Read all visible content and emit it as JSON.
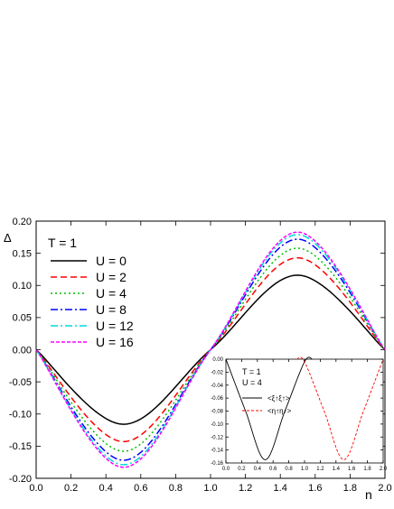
{
  "chart_data": [
    {
      "type": "line",
      "title": "",
      "xlabel": "n",
      "ylabel": "Δ",
      "xlim": [
        0.0,
        2.0
      ],
      "ylim": [
        -0.2,
        0.2
      ],
      "x_ticks": [
        "0.0",
        "0.2",
        "0.4",
        "0.6",
        "0.8",
        "1.0",
        "1.2",
        "1.4",
        "1.6",
        "1.8",
        "2.0"
      ],
      "y_ticks": [
        "-0.20",
        "-0.15",
        "-0.10",
        "-0.05",
        "0.00",
        "0.05",
        "0.10",
        "0.15",
        "0.20"
      ],
      "grid": false,
      "legend_position": "top-left",
      "legend_title": "T = 1",
      "series": [
        {
          "name": "U = 0",
          "color": "#000000",
          "dash": "solid",
          "x": [
            0.0,
            0.5,
            1.0,
            1.5,
            2.0
          ],
          "y": [
            0.0,
            -0.116,
            0.0,
            0.116,
            0.0
          ]
        },
        {
          "name": "U = 2",
          "color": "#ff0000",
          "dash": "dashed",
          "x": [
            0.0,
            0.5,
            1.0,
            1.5,
            2.0
          ],
          "y": [
            0.0,
            -0.143,
            0.0,
            0.143,
            0.0
          ]
        },
        {
          "name": "U = 4",
          "color": "#00c000",
          "dash": "dotted",
          "x": [
            0.0,
            0.5,
            1.0,
            1.5,
            2.0
          ],
          "y": [
            0.0,
            -0.158,
            0.0,
            0.158,
            0.0
          ]
        },
        {
          "name": "U = 8",
          "color": "#0000ff",
          "dash": "dash-dot",
          "x": [
            0.0,
            0.5,
            1.0,
            1.5,
            2.0
          ],
          "y": [
            0.0,
            -0.172,
            0.0,
            0.172,
            0.0
          ]
        },
        {
          "name": "U = 12",
          "color": "#00d8d8",
          "dash": "dash-dot",
          "x": [
            0.0,
            0.5,
            1.0,
            1.5,
            2.0
          ],
          "y": [
            0.0,
            -0.179,
            0.0,
            0.179,
            0.0
          ]
        },
        {
          "name": "U = 16",
          "color": "#ff00ff",
          "dash": "short-dash",
          "x": [
            0.0,
            0.5,
            1.0,
            1.5,
            2.0
          ],
          "y": [
            0.0,
            -0.183,
            0.0,
            0.183,
            0.0
          ]
        }
      ]
    },
    {
      "type": "line",
      "title": "",
      "xlabel": "",
      "ylabel": "",
      "xlim": [
        0.0,
        2.0
      ],
      "ylim": [
        -0.16,
        0.0
      ],
      "x_ticks": [
        "0.0",
        "0.2",
        "0.4",
        "0.6",
        "0.8",
        "1.0",
        "1.2",
        "1.4",
        "1.6",
        "1.8",
        "2.0"
      ],
      "y_ticks": [
        "0.00",
        "-0.02",
        "-0.04",
        "-0.06",
        "-0.08",
        "-0.10",
        "-0.12",
        "-0.14",
        "-0.16"
      ],
      "grid": false,
      "legend_position": "top-left",
      "legend_title_lines": [
        "T = 1",
        "U = 4"
      ],
      "series": [
        {
          "name": "<ξ↑ξ↑>",
          "color": "#000000",
          "dash": "solid",
          "x": [
            0.0,
            0.25,
            0.5,
            0.75,
            1.0,
            1.1
          ],
          "y": [
            0.0,
            -0.08,
            -0.155,
            -0.08,
            -0.004,
            0.0
          ]
        },
        {
          "name": "<η↑η↑>",
          "color": "#ff0000",
          "dash": "dashed",
          "x": [
            0.9,
            1.0,
            1.25,
            1.5,
            1.75,
            2.0
          ],
          "y": [
            0.0,
            -0.004,
            -0.08,
            -0.155,
            -0.08,
            0.0
          ]
        }
      ]
    }
  ]
}
